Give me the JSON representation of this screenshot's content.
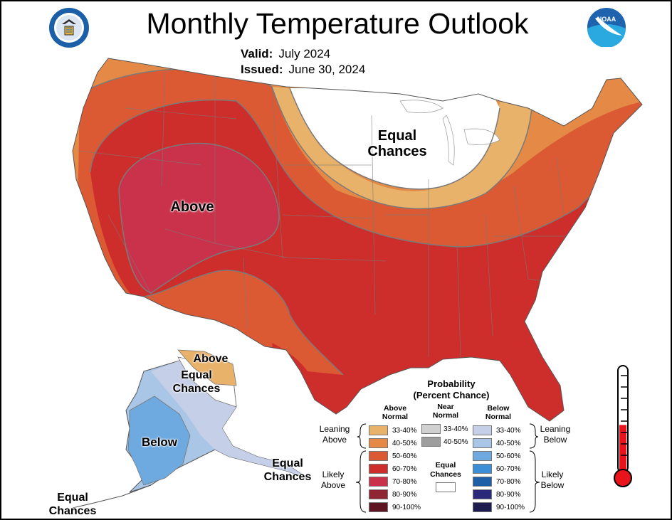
{
  "header": {
    "title": "Monthly Temperature Outlook",
    "valid_label": "Valid:",
    "valid_value": "July 2024",
    "issued_label": "Issued:",
    "issued_value": "June 30, 2024"
  },
  "logos": {
    "left": "commerce-seal-icon",
    "right": "noaa-logo-icon"
  },
  "map_labels": {
    "conus_equal": "Equal Chances",
    "conus_above": "Above",
    "ak_above": "Above",
    "ak_equal_north": "Equal Chances",
    "ak_below": "Below",
    "ak_equal_se": "Equal Chances",
    "ak_equal_sw": "Equal Chances"
  },
  "legend": {
    "title": "Probability",
    "subtitle": "(Percent Chance)",
    "above_header": "Above Normal",
    "near_header": "Near Normal",
    "below_header": "Below Normal",
    "leaning_above": "Leaning Above",
    "likely_above": "Likely Above",
    "leaning_below": "Leaning Below",
    "likely_below": "Likely Below",
    "equal_chances": "Equal Chances",
    "above": [
      {
        "range": "33-40%",
        "color": "#E8B26A"
      },
      {
        "range": "40-50%",
        "color": "#E48A46"
      },
      {
        "range": "50-60%",
        "color": "#DB5A33"
      },
      {
        "range": "60-70%",
        "color": "#CE2E2B"
      },
      {
        "range": "70-80%",
        "color": "#C9324A"
      },
      {
        "range": "80-90%",
        "color": "#8E2633"
      },
      {
        "range": "90-100%",
        "color": "#5E1521"
      }
    ],
    "near": [
      {
        "range": "33-40%",
        "color": "#D0D0D0"
      },
      {
        "range": "40-50%",
        "color": "#9E9E9E"
      }
    ],
    "below": [
      {
        "range": "33-40%",
        "color": "#C6CFE8"
      },
      {
        "range": "40-50%",
        "color": "#A9C6E6"
      },
      {
        "range": "50-60%",
        "color": "#6EA9E0"
      },
      {
        "range": "60-70%",
        "color": "#3C8ED6"
      },
      {
        "range": "70-80%",
        "color": "#1F5FA8"
      },
      {
        "range": "80-90%",
        "color": "#2B2A7A"
      },
      {
        "range": "90-100%",
        "color": "#1C1C4E"
      }
    ]
  },
  "thermometer": {
    "fill_fraction": 0.45,
    "color": "#E8131B"
  }
}
